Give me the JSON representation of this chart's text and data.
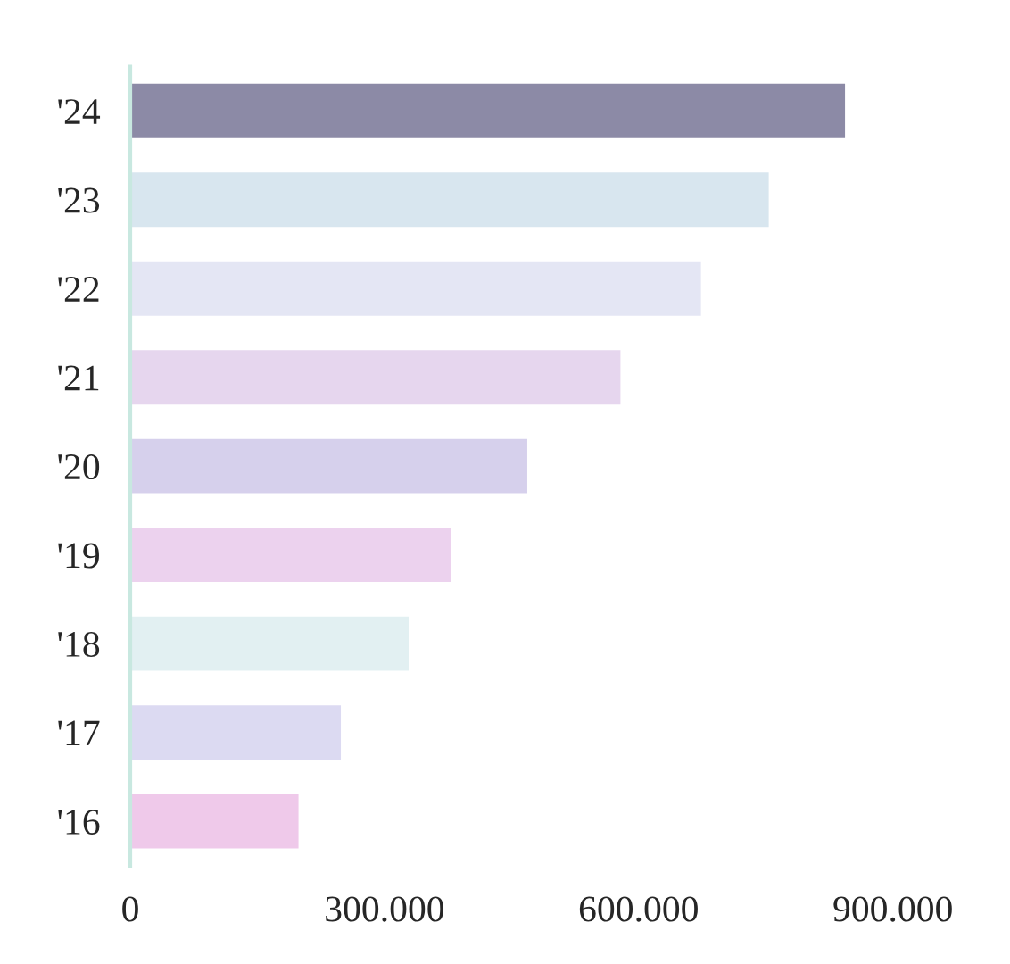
{
  "chart_data": {
    "type": "bar",
    "orientation": "horizontal",
    "categories": [
      "'24",
      "'23",
      "'22",
      "'21",
      "'20",
      "'19",
      "'18",
      "'17",
      "'16"
    ],
    "values": [
      845000,
      755000,
      675000,
      580000,
      470000,
      380000,
      330000,
      250000,
      200000
    ],
    "colors": [
      "#8c8aa6",
      "#d8e6ef",
      "#e4e6f4",
      "#e6d6ee",
      "#d6d0ec",
      "#ecd2ee",
      "#e2f0f2",
      "#dcdaf2",
      "#efc9ea"
    ],
    "xlim": [
      0,
      900000
    ],
    "xticks": [
      0,
      {
        "value": 300000,
        "label": "300.000"
      },
      {
        "value": 600000,
        "label": "600.000"
      },
      {
        "value": 900000,
        "label": "900.000"
      }
    ],
    "grid": false
  }
}
